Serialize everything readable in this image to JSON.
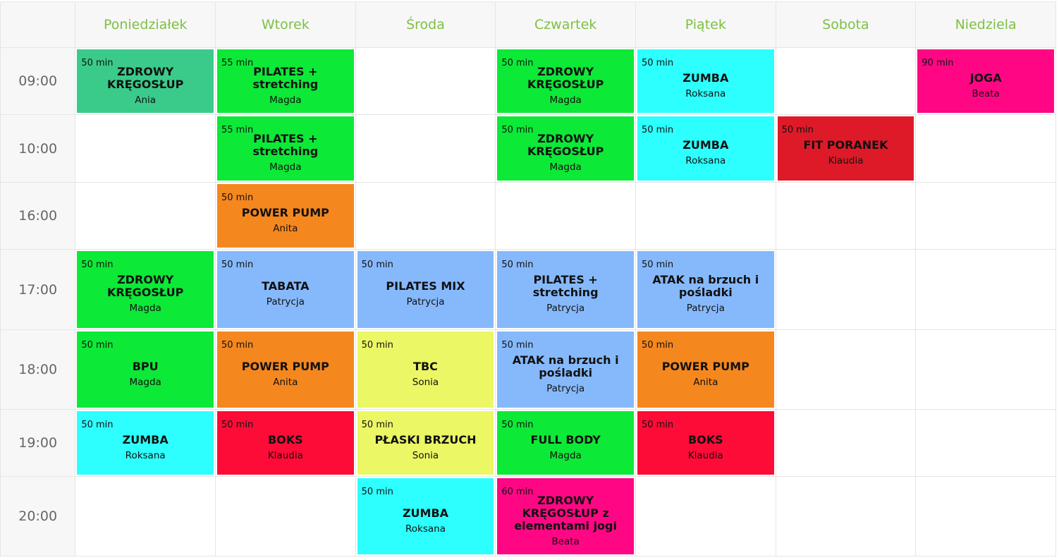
{
  "days": [
    "Poniedziałek",
    "Wtorek",
    "Środa",
    "Czwartek",
    "Piątek",
    "Sobota",
    "Niedziela"
  ],
  "colors": {
    "green": "#0ce937",
    "teal": "#3acb8a",
    "cyan": "#2dfffe",
    "orange": "#f5871f",
    "blue": "#86b9fc",
    "yellow": "#ebf764",
    "red": "#fd0c38",
    "darkred": "#de1a29",
    "pink": "#ff0784",
    "header_text": "#7dc043"
  },
  "rows": [
    {
      "time": "09:00",
      "slots": [
        {
          "dur": "50 min",
          "name": "ZDROWY KRĘGOSŁUP",
          "coach": "Ania",
          "color": "#3acb8a"
        },
        {
          "dur": "55 min",
          "name": "PILATES + stretching",
          "coach": "Magda",
          "color": "#0ce937"
        },
        null,
        {
          "dur": "50 min",
          "name": "ZDROWY KRĘGOSŁUP",
          "coach": "Magda",
          "color": "#0ce937"
        },
        {
          "dur": "50 min",
          "name": "ZUMBA",
          "coach": "Roksana",
          "color": "#2dfffe"
        },
        null,
        {
          "dur": "90 min",
          "name": "JOGA",
          "coach": "Beata",
          "color": "#ff0784"
        }
      ]
    },
    {
      "time": "10:00",
      "slots": [
        null,
        {
          "dur": "55 min",
          "name": "PILATES + stretching",
          "coach": "Magda",
          "color": "#0ce937"
        },
        null,
        {
          "dur": "50 min",
          "name": "ZDROWY KRĘGOSŁUP",
          "coach": "Magda",
          "color": "#0ce937"
        },
        {
          "dur": "50 min",
          "name": "ZUMBA",
          "coach": "Roksana",
          "color": "#2dfffe"
        },
        {
          "dur": "50 min",
          "name": "FIT PORANEK",
          "coach": "Klaudia",
          "color": "#de1a29"
        },
        null
      ]
    },
    {
      "time": "16:00",
      "slots": [
        null,
        {
          "dur": "50 min",
          "name": "POWER PUMP",
          "coach": "Anita",
          "color": "#f5871f"
        },
        null,
        null,
        null,
        null,
        null
      ]
    },
    {
      "time": "17:00",
      "slots": [
        {
          "dur": "50 min",
          "name": "ZDROWY KRĘGOSŁUP",
          "coach": "Magda",
          "color": "#0ce937"
        },
        {
          "dur": "50 min",
          "name": "TABATA",
          "coach": "Patrycja",
          "color": "#86b9fc"
        },
        {
          "dur": "50 min",
          "name": "PILATES MIX",
          "coach": "Patrycja",
          "color": "#86b9fc"
        },
        {
          "dur": "50 min",
          "name": "PILATES + stretching",
          "coach": "Patrycja",
          "color": "#86b9fc"
        },
        {
          "dur": "50 min",
          "name": "ATAK na brzuch i pośladki",
          "coach": "Patrycja",
          "color": "#86b9fc"
        },
        null,
        null
      ]
    },
    {
      "time": "18:00",
      "slots": [
        {
          "dur": "50 min",
          "name": "BPU",
          "coach": "Magda",
          "color": "#0ce937"
        },
        {
          "dur": "50 min",
          "name": "POWER PUMP",
          "coach": "Anita",
          "color": "#f5871f"
        },
        {
          "dur": "50 min",
          "name": "TBC",
          "coach": "Sonia",
          "color": "#ebf764"
        },
        {
          "dur": "50 min",
          "name": "ATAK na brzuch i pośladki",
          "coach": "Patrycja",
          "color": "#86b9fc"
        },
        {
          "dur": "50 min",
          "name": "POWER PUMP",
          "coach": "Anita",
          "color": "#f5871f"
        },
        null,
        null
      ]
    },
    {
      "time": "19:00",
      "slots": [
        {
          "dur": "50 min",
          "name": "ZUMBA",
          "coach": "Roksana",
          "color": "#2dfffe"
        },
        {
          "dur": "50 min",
          "name": "BOKS",
          "coach": "Klaudia",
          "color": "#fd0c38"
        },
        {
          "dur": "50 min",
          "name": "PŁASKI BRZUCH",
          "coach": "Sonia",
          "color": "#ebf764"
        },
        {
          "dur": "50 min",
          "name": "FULL BODY",
          "coach": "Magda",
          "color": "#0ce937"
        },
        {
          "dur": "50 min",
          "name": "BOKS",
          "coach": "Klaudia",
          "color": "#fd0c38"
        },
        null,
        null
      ]
    },
    {
      "time": "20:00",
      "slots": [
        null,
        null,
        {
          "dur": "50 min",
          "name": "ZUMBA",
          "coach": "Roksana",
          "color": "#2dfffe"
        },
        {
          "dur": "60 min",
          "name": "ZDROWY KRĘGOSŁUP z elementami jogi",
          "coach": "Beata",
          "color": "#ff0784"
        },
        null,
        null,
        null
      ]
    }
  ]
}
